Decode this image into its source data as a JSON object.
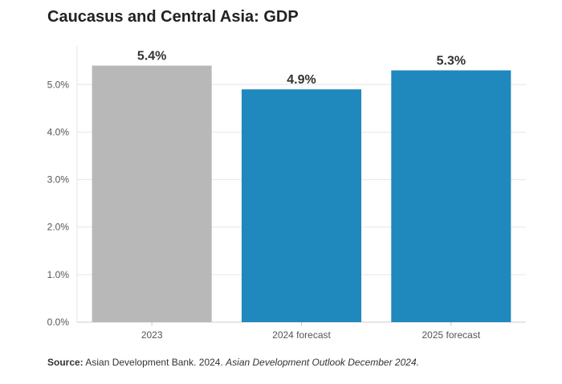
{
  "chart_data": {
    "type": "bar",
    "title": "Caucasus and Central Asia: GDP",
    "categories": [
      "2023",
      "2024 forecast",
      "2025 forecast"
    ],
    "values": [
      5.4,
      4.9,
      5.3
    ],
    "data_labels": [
      "5.4%",
      "4.9%",
      "5.3%"
    ],
    "bar_colors": [
      "#b8b8b8",
      "#1f88bd",
      "#1f88bd"
    ],
    "ylim": [
      0,
      5.8
    ],
    "yticks": [
      0,
      1,
      2,
      3,
      4,
      5
    ],
    "ytick_labels": [
      "0.0%",
      "1.0%",
      "2.0%",
      "3.0%",
      "4.0%",
      "5.0%"
    ],
    "xlabel": "",
    "ylabel": "",
    "grid": true,
    "legend": "none"
  },
  "source": {
    "label": "Source:",
    "text": "Asian Development Bank. 2024.",
    "publication": "Asian Development Outlook December 2024."
  }
}
